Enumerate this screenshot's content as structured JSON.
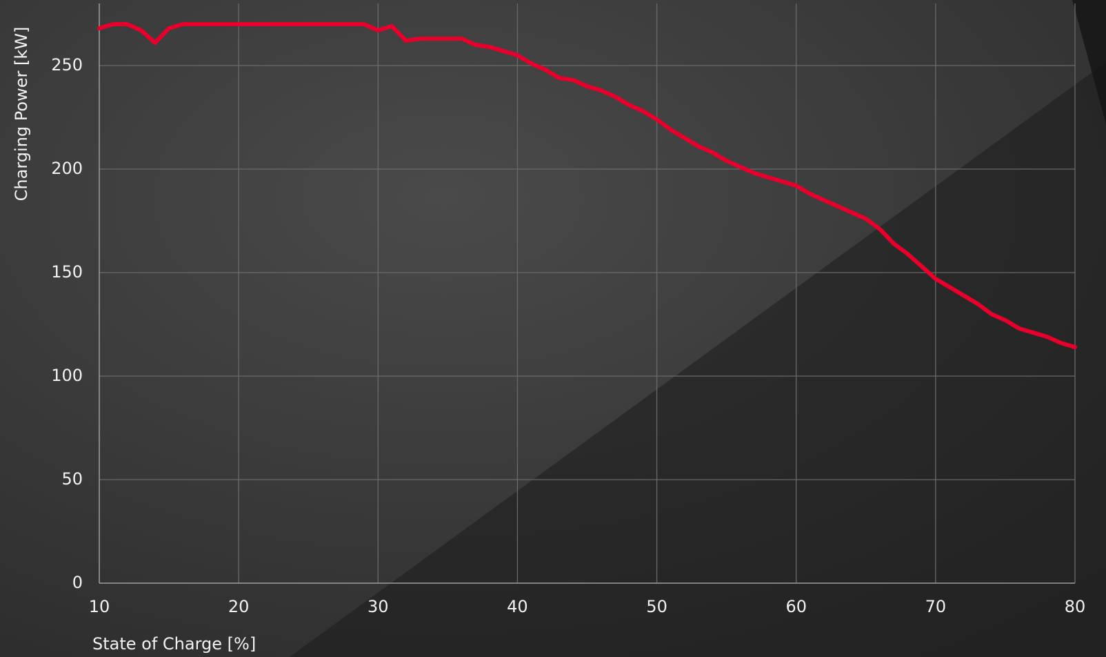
{
  "chart_data": {
    "type": "line",
    "x_label": "State of Charge [%]",
    "y_label": "Charging Power [kW]",
    "x": [
      10,
      11,
      12,
      13,
      14,
      15,
      16,
      17,
      18,
      19,
      20,
      21,
      22,
      23,
      24,
      25,
      26,
      27,
      28,
      29,
      30,
      31,
      32,
      33,
      34,
      35,
      36,
      37,
      38,
      39,
      40,
      41,
      42,
      43,
      44,
      45,
      46,
      47,
      48,
      49,
      50,
      51,
      52,
      53,
      54,
      55,
      56,
      57,
      58,
      59,
      60,
      61,
      62,
      63,
      64,
      65,
      66,
      67,
      68,
      69,
      70,
      71,
      72,
      73,
      74,
      75,
      76,
      77,
      78,
      79,
      80
    ],
    "values": [
      268,
      270,
      270,
      267,
      261,
      268,
      270,
      270,
      270,
      270,
      270,
      270,
      270,
      270,
      270,
      270,
      270,
      270,
      270,
      270,
      267,
      269,
      262,
      263,
      263,
      263,
      263,
      260,
      259,
      257,
      255,
      251,
      248,
      244,
      243,
      240,
      238,
      235,
      231,
      228,
      224,
      219,
      215,
      211,
      208,
      204,
      201,
      198,
      196,
      194,
      192,
      188,
      185,
      182,
      179,
      176,
      171,
      164,
      159,
      153,
      147,
      143,
      139,
      135,
      130,
      127,
      123,
      121,
      119,
      116,
      114
    ],
    "color": "#e8002d",
    "xlim": [
      10,
      80
    ],
    "xticks": [
      10,
      20,
      30,
      40,
      50,
      60,
      70,
      80
    ],
    "ylim": [
      0,
      280
    ],
    "yticks": [
      0,
      50,
      100,
      150,
      200,
      250
    ],
    "grid": true
  }
}
